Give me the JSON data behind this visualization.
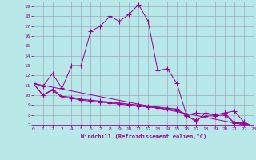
{
  "xlabel": "Windchill (Refroidissement éolien,°C)",
  "xlim": [
    0,
    23
  ],
  "ylim": [
    7,
    19.5
  ],
  "yticks": [
    7,
    8,
    9,
    10,
    11,
    12,
    13,
    14,
    15,
    16,
    17,
    18,
    19
  ],
  "xticks": [
    0,
    1,
    2,
    3,
    4,
    5,
    6,
    7,
    8,
    9,
    10,
    11,
    12,
    13,
    14,
    15,
    16,
    17,
    18,
    19,
    20,
    21,
    22,
    23
  ],
  "line_color": "#990099",
  "bg_color": "#b8e8e8",
  "grid_color": "#9999bb",
  "line1_x": [
    0,
    1,
    2,
    3,
    4,
    5,
    6,
    7,
    8,
    9,
    10,
    11,
    12,
    13,
    14,
    15,
    16,
    17,
    18,
    19,
    20,
    21,
    22,
    23
  ],
  "line1_y": [
    11.2,
    10.9,
    12.2,
    10.7,
    13.0,
    13.0,
    16.5,
    17.0,
    18.0,
    17.5,
    18.2,
    19.2,
    17.5,
    12.5,
    12.7,
    11.2,
    8.0,
    7.3,
    8.2,
    8.0,
    8.2,
    8.4,
    7.3,
    6.8
  ],
  "line2_x": [
    0,
    1,
    2,
    3,
    4,
    5,
    6,
    7,
    8,
    9,
    10,
    11,
    12,
    13,
    14,
    15,
    16,
    17,
    18,
    19,
    20,
    21,
    22,
    23
  ],
  "line2_y": [
    11.2,
    10.0,
    10.6,
    9.9,
    9.8,
    9.6,
    9.5,
    9.4,
    9.3,
    9.2,
    9.1,
    9.0,
    8.9,
    8.8,
    8.7,
    8.6,
    8.0,
    8.2,
    8.1,
    8.0,
    8.2,
    7.2,
    7.2,
    6.8
  ],
  "line3_x": [
    0,
    1,
    2,
    3,
    4,
    5,
    6,
    7,
    8,
    9,
    10,
    11,
    12,
    13,
    14,
    15,
    16,
    17,
    18,
    19,
    20,
    21,
    22,
    23
  ],
  "line3_y": [
    11.2,
    10.0,
    10.5,
    9.8,
    9.7,
    9.5,
    9.4,
    9.3,
    9.2,
    9.1,
    9.0,
    8.9,
    8.8,
    8.7,
    8.6,
    8.5,
    7.9,
    7.5,
    7.9,
    7.9,
    8.0,
    7.2,
    7.1,
    6.8
  ],
  "line4_x": [
    0,
    23
  ],
  "line4_y": [
    11.2,
    6.8
  ]
}
